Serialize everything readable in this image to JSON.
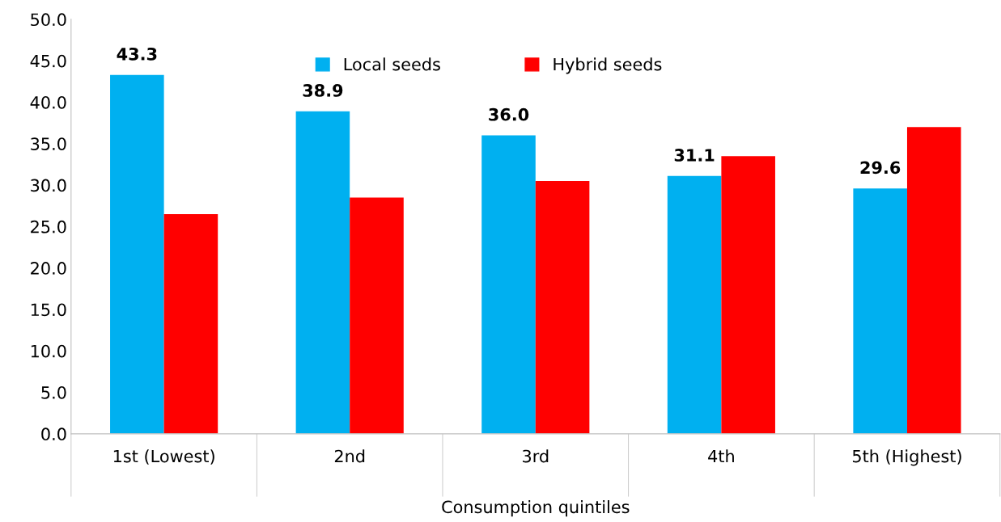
{
  "chart_data": {
    "type": "bar",
    "xlabel": "Consumption quintiles",
    "categories": [
      "1st (Lowest)",
      "2nd",
      "3rd",
      "4th",
      "5th (Highest)"
    ],
    "series": [
      {
        "name": "Local seeds",
        "color": "#00b0f0",
        "values": [
          43.3,
          38.9,
          36.0,
          31.1,
          29.6
        ],
        "value_labels": [
          "43.3",
          "38.9",
          "36.0",
          "31.1",
          "29.6"
        ]
      },
      {
        "name": "Hybrid seeds",
        "color": "#ff0000",
        "values": [
          26.5,
          28.5,
          30.5,
          33.5,
          37.0
        ]
      }
    ],
    "ylim": [
      0,
      50
    ],
    "yticks": [
      {
        "value": 0,
        "label": "0.0"
      },
      {
        "value": 5,
        "label": "5.0"
      },
      {
        "value": 10,
        "label": "10.0"
      },
      {
        "value": 15,
        "label": "15.0"
      },
      {
        "value": 20,
        "label": "20.0"
      },
      {
        "value": 25,
        "label": "25.0"
      },
      {
        "value": 30,
        "label": "30.0"
      },
      {
        "value": 35,
        "label": "35.0"
      },
      {
        "value": 40,
        "label": "40.0"
      },
      {
        "value": 45,
        "label": "45.0"
      },
      {
        "value": 50,
        "label": "50.0"
      }
    ],
    "grid": false,
    "legend": "top"
  }
}
